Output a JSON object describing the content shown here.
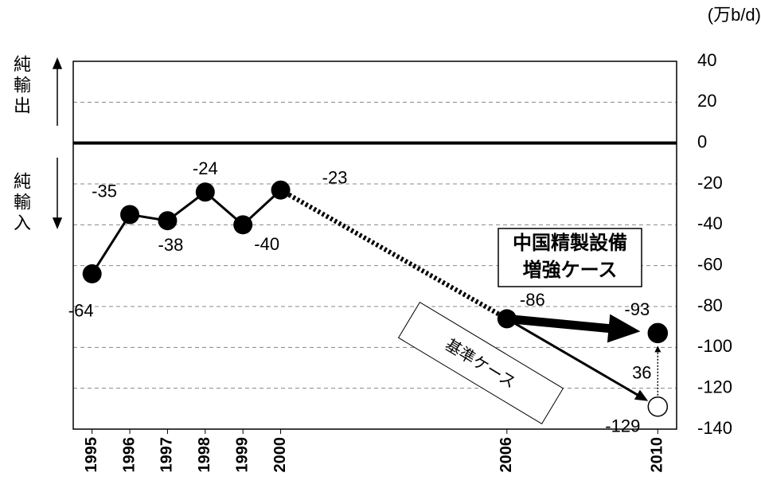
{
  "chart_data": {
    "type": "line",
    "unit": "(万b/d)",
    "export_label": "純輸出",
    "import_label": "純輸入",
    "x": [
      1995,
      1996,
      1997,
      1998,
      1999,
      2000,
      2006
    ],
    "values": [
      -64,
      -35,
      -38,
      -24,
      -40,
      -23,
      -86
    ],
    "cases": [
      {
        "label": [
          "中国精製設備",
          "増強ケース"
        ],
        "x": 2010,
        "value": -93
      },
      {
        "label": [
          "基準ケース"
        ],
        "x": 2010,
        "value": -129
      }
    ],
    "difference": 36,
    "xlim": [
      1994.5,
      2010.5
    ],
    "xticks": [
      1995,
      1996,
      1997,
      1998,
      1999,
      2000,
      2006,
      2010
    ],
    "ylim": [
      -140,
      40
    ],
    "yticks": [
      40,
      20,
      0,
      -20,
      -40,
      -60,
      -80,
      -100,
      -120,
      -140
    ],
    "grid": true
  }
}
